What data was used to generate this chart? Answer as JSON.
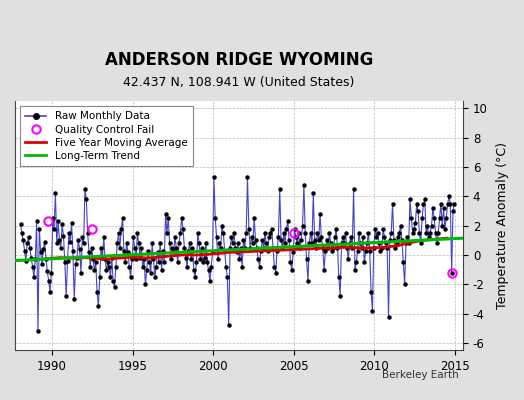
{
  "title": "ANDERSON RIDGE WYOMING",
  "subtitle": "42.437 N, 108.941 W (United States)",
  "ylabel": "Temperature Anomaly (°C)",
  "watermark": "Berkeley Earth",
  "xlim": [
    1987.7,
    2015.5
  ],
  "ylim": [
    -6.5,
    10.5
  ],
  "yticks": [
    -6,
    -4,
    -2,
    0,
    2,
    4,
    6,
    8,
    10
  ],
  "xticks": [
    1990,
    1995,
    2000,
    2005,
    2010,
    2015
  ],
  "bg_color": "#e0e0e0",
  "plot_bg_color": "#ffffff",
  "raw_line_color": "#4444cc",
  "raw_dot_color": "#000000",
  "qc_fail_color": "#ff00ff",
  "moving_avg_color": "#dd0000",
  "trend_color": "#00bb00",
  "raw_data": [
    [
      1988.042,
      2.1
    ],
    [
      1988.125,
      1.5
    ],
    [
      1988.208,
      1.0
    ],
    [
      1988.292,
      0.3
    ],
    [
      1988.375,
      -0.4
    ],
    [
      1988.458,
      0.8
    ],
    [
      1988.542,
      1.2
    ],
    [
      1988.625,
      0.5
    ],
    [
      1988.708,
      -0.2
    ],
    [
      1988.792,
      -0.8
    ],
    [
      1988.875,
      -1.5
    ],
    [
      1988.958,
      -0.3
    ],
    [
      1989.042,
      2.3
    ],
    [
      1989.125,
      -5.2
    ],
    [
      1989.208,
      1.8
    ],
    [
      1989.292,
      0.2
    ],
    [
      1989.375,
      -0.6
    ],
    [
      1989.458,
      0.4
    ],
    [
      1989.542,
      0.9
    ],
    [
      1989.625,
      -0.3
    ],
    [
      1989.708,
      -1.1
    ],
    [
      1989.792,
      -1.8
    ],
    [
      1989.875,
      -2.5
    ],
    [
      1989.958,
      -1.2
    ],
    [
      1990.042,
      2.5
    ],
    [
      1990.125,
      1.8
    ],
    [
      1990.208,
      4.2
    ],
    [
      1990.292,
      0.8
    ],
    [
      1990.375,
      2.3
    ],
    [
      1990.458,
      1.0
    ],
    [
      1990.542,
      0.5
    ],
    [
      1990.625,
      2.1
    ],
    [
      1990.708,
      1.3
    ],
    [
      1990.792,
      -0.5
    ],
    [
      1990.875,
      -2.8
    ],
    [
      1990.958,
      -0.4
    ],
    [
      1991.042,
      1.5
    ],
    [
      1991.125,
      0.9
    ],
    [
      1991.208,
      2.2
    ],
    [
      1991.292,
      0.3
    ],
    [
      1991.375,
      -3.0
    ],
    [
      1991.458,
      -0.6
    ],
    [
      1991.542,
      -0.2
    ],
    [
      1991.625,
      1.0
    ],
    [
      1991.708,
      0.4
    ],
    [
      1991.792,
      -1.2
    ],
    [
      1991.875,
      1.2
    ],
    [
      1991.958,
      0.8
    ],
    [
      1992.042,
      4.5
    ],
    [
      1992.125,
      3.8
    ],
    [
      1992.208,
      1.5
    ],
    [
      1992.292,
      0.2
    ],
    [
      1992.375,
      -0.8
    ],
    [
      1992.458,
      0.5
    ],
    [
      1992.542,
      -0.3
    ],
    [
      1992.625,
      -1.0
    ],
    [
      1992.708,
      -0.5
    ],
    [
      1992.792,
      -2.5
    ],
    [
      1992.875,
      -3.5
    ],
    [
      1992.958,
      -1.5
    ],
    [
      1993.042,
      0.5
    ],
    [
      1993.125,
      -0.2
    ],
    [
      1993.208,
      1.2
    ],
    [
      1993.292,
      -0.3
    ],
    [
      1993.375,
      -1.0
    ],
    [
      1993.458,
      -0.5
    ],
    [
      1993.542,
      -0.8
    ],
    [
      1993.625,
      -1.5
    ],
    [
      1993.708,
      -0.2
    ],
    [
      1993.792,
      -1.8
    ],
    [
      1993.875,
      -2.2
    ],
    [
      1993.958,
      -0.8
    ],
    [
      1994.042,
      0.8
    ],
    [
      1994.125,
      1.5
    ],
    [
      1994.208,
      0.5
    ],
    [
      1994.292,
      1.8
    ],
    [
      1994.375,
      2.5
    ],
    [
      1994.458,
      0.3
    ],
    [
      1994.542,
      -0.5
    ],
    [
      1994.625,
      0.8
    ],
    [
      1994.708,
      0.2
    ],
    [
      1994.792,
      -0.8
    ],
    [
      1994.875,
      -1.5
    ],
    [
      1994.958,
      -0.3
    ],
    [
      1995.042,
      1.2
    ],
    [
      1995.125,
      0.5
    ],
    [
      1995.208,
      -0.3
    ],
    [
      1995.292,
      1.5
    ],
    [
      1995.375,
      0.8
    ],
    [
      1995.458,
      -0.2
    ],
    [
      1995.542,
      0.5
    ],
    [
      1995.625,
      -0.8
    ],
    [
      1995.708,
      -0.3
    ],
    [
      1995.792,
      -2.0
    ],
    [
      1995.875,
      -1.0
    ],
    [
      1995.958,
      0.3
    ],
    [
      1996.042,
      -0.5
    ],
    [
      1996.125,
      -1.2
    ],
    [
      1996.208,
      0.8
    ],
    [
      1996.292,
      -0.3
    ],
    [
      1996.375,
      -1.5
    ],
    [
      1996.458,
      -0.8
    ],
    [
      1996.542,
      0.2
    ],
    [
      1996.625,
      -0.5
    ],
    [
      1996.708,
      0.8
    ],
    [
      1996.792,
      -1.0
    ],
    [
      1996.875,
      0.3
    ],
    [
      1996.958,
      -0.5
    ],
    [
      1997.042,
      2.8
    ],
    [
      1997.125,
      1.5
    ],
    [
      1997.208,
      2.5
    ],
    [
      1997.292,
      0.8
    ],
    [
      1997.375,
      -0.3
    ],
    [
      1997.458,
      0.5
    ],
    [
      1997.542,
      0.2
    ],
    [
      1997.625,
      1.2
    ],
    [
      1997.708,
      0.5
    ],
    [
      1997.792,
      -0.5
    ],
    [
      1997.875,
      0.8
    ],
    [
      1997.958,
      1.5
    ],
    [
      1998.042,
      2.5
    ],
    [
      1998.125,
      1.8
    ],
    [
      1998.208,
      0.5
    ],
    [
      1998.292,
      -0.2
    ],
    [
      1998.375,
      -0.8
    ],
    [
      1998.458,
      0.3
    ],
    [
      1998.542,
      0.8
    ],
    [
      1998.625,
      -0.3
    ],
    [
      1998.708,
      0.5
    ],
    [
      1998.792,
      -1.0
    ],
    [
      1998.875,
      -1.5
    ],
    [
      1998.958,
      -0.5
    ],
    [
      1999.042,
      1.5
    ],
    [
      1999.125,
      0.8
    ],
    [
      1999.208,
      -0.3
    ],
    [
      1999.292,
      0.5
    ],
    [
      1999.375,
      -0.5
    ],
    [
      1999.458,
      -0.2
    ],
    [
      1999.542,
      0.8
    ],
    [
      1999.625,
      -0.5
    ],
    [
      1999.708,
      -1.0
    ],
    [
      1999.792,
      -1.8
    ],
    [
      1999.875,
      -0.8
    ],
    [
      1999.958,
      0.2
    ],
    [
      2000.042,
      5.3
    ],
    [
      2000.125,
      2.5
    ],
    [
      2000.208,
      1.2
    ],
    [
      2000.292,
      -0.3
    ],
    [
      2000.375,
      0.8
    ],
    [
      2000.458,
      0.5
    ],
    [
      2000.542,
      2.0
    ],
    [
      2000.625,
      1.5
    ],
    [
      2000.708,
      0.3
    ],
    [
      2000.792,
      -0.8
    ],
    [
      2000.875,
      -1.5
    ],
    [
      2000.958,
      -4.8
    ],
    [
      2001.042,
      0.5
    ],
    [
      2001.125,
      1.2
    ],
    [
      2001.208,
      0.8
    ],
    [
      2001.292,
      1.5
    ],
    [
      2001.375,
      0.5
    ],
    [
      2001.458,
      0.2
    ],
    [
      2001.542,
      0.8
    ],
    [
      2001.625,
      -0.3
    ],
    [
      2001.708,
      0.5
    ],
    [
      2001.792,
      -0.8
    ],
    [
      2001.875,
      1.0
    ],
    [
      2001.958,
      0.5
    ],
    [
      2002.042,
      1.5
    ],
    [
      2002.125,
      5.3
    ],
    [
      2002.208,
      1.8
    ],
    [
      2002.292,
      0.5
    ],
    [
      2002.375,
      1.2
    ],
    [
      2002.458,
      0.8
    ],
    [
      2002.542,
      2.5
    ],
    [
      2002.625,
      1.0
    ],
    [
      2002.708,
      0.5
    ],
    [
      2002.792,
      -0.3
    ],
    [
      2002.875,
      -0.8
    ],
    [
      2002.958,
      0.3
    ],
    [
      2003.042,
      1.0
    ],
    [
      2003.125,
      0.5
    ],
    [
      2003.208,
      1.5
    ],
    [
      2003.292,
      0.8
    ],
    [
      2003.375,
      0.3
    ],
    [
      2003.458,
      1.2
    ],
    [
      2003.542,
      1.5
    ],
    [
      2003.625,
      1.8
    ],
    [
      2003.708,
      0.5
    ],
    [
      2003.792,
      -0.8
    ],
    [
      2003.875,
      -1.2
    ],
    [
      2003.958,
      0.3
    ],
    [
      2004.042,
      1.2
    ],
    [
      2004.125,
      4.5
    ],
    [
      2004.208,
      1.0
    ],
    [
      2004.292,
      0.5
    ],
    [
      2004.375,
      1.5
    ],
    [
      2004.458,
      0.8
    ],
    [
      2004.542,
      1.8
    ],
    [
      2004.625,
      2.3
    ],
    [
      2004.708,
      1.0
    ],
    [
      2004.792,
      -0.5
    ],
    [
      2004.875,
      -1.0
    ],
    [
      2004.958,
      0.2
    ],
    [
      2005.042,
      1.8
    ],
    [
      2005.125,
      1.2
    ],
    [
      2005.208,
      0.8
    ],
    [
      2005.292,
      1.5
    ],
    [
      2005.375,
      0.5
    ],
    [
      2005.458,
      1.0
    ],
    [
      2005.542,
      2.0
    ],
    [
      2005.625,
      4.8
    ],
    [
      2005.708,
      1.5
    ],
    [
      2005.792,
      -0.3
    ],
    [
      2005.875,
      -1.8
    ],
    [
      2005.958,
      0.8
    ],
    [
      2006.042,
      1.5
    ],
    [
      2006.125,
      0.8
    ],
    [
      2006.208,
      4.2
    ],
    [
      2006.292,
      1.0
    ],
    [
      2006.375,
      0.5
    ],
    [
      2006.458,
      1.5
    ],
    [
      2006.542,
      1.0
    ],
    [
      2006.625,
      2.8
    ],
    [
      2006.708,
      1.2
    ],
    [
      2006.792,
      0.5
    ],
    [
      2006.875,
      -1.0
    ],
    [
      2006.958,
      0.3
    ],
    [
      2007.042,
      1.0
    ],
    [
      2007.125,
      0.5
    ],
    [
      2007.208,
      1.5
    ],
    [
      2007.292,
      0.8
    ],
    [
      2007.375,
      0.3
    ],
    [
      2007.458,
      0.5
    ],
    [
      2007.542,
      1.2
    ],
    [
      2007.625,
      1.8
    ],
    [
      2007.708,
      0.5
    ],
    [
      2007.792,
      -1.5
    ],
    [
      2007.875,
      -2.8
    ],
    [
      2007.958,
      0.8
    ],
    [
      2008.042,
      1.2
    ],
    [
      2008.125,
      0.8
    ],
    [
      2008.208,
      1.5
    ],
    [
      2008.292,
      0.5
    ],
    [
      2008.375,
      -0.3
    ],
    [
      2008.458,
      0.8
    ],
    [
      2008.542,
      1.2
    ],
    [
      2008.625,
      0.5
    ],
    [
      2008.708,
      4.5
    ],
    [
      2008.792,
      -1.0
    ],
    [
      2008.875,
      -0.5
    ],
    [
      2008.958,
      0.3
    ],
    [
      2009.042,
      1.5
    ],
    [
      2009.125,
      0.8
    ],
    [
      2009.208,
      0.5
    ],
    [
      2009.292,
      1.2
    ],
    [
      2009.375,
      -0.5
    ],
    [
      2009.458,
      0.3
    ],
    [
      2009.542,
      0.8
    ],
    [
      2009.625,
      1.5
    ],
    [
      2009.708,
      0.3
    ],
    [
      2009.792,
      -2.5
    ],
    [
      2009.875,
      -3.8
    ],
    [
      2009.958,
      0.5
    ],
    [
      2010.042,
      1.8
    ],
    [
      2010.125,
      1.2
    ],
    [
      2010.208,
      1.5
    ],
    [
      2010.292,
      0.8
    ],
    [
      2010.375,
      0.3
    ],
    [
      2010.458,
      0.5
    ],
    [
      2010.542,
      1.8
    ],
    [
      2010.625,
      1.2
    ],
    [
      2010.708,
      0.8
    ],
    [
      2010.792,
      0.5
    ],
    [
      2010.875,
      -4.2
    ],
    [
      2010.958,
      1.0
    ],
    [
      2011.042,
      1.5
    ],
    [
      2011.125,
      3.5
    ],
    [
      2011.208,
      1.0
    ],
    [
      2011.292,
      0.5
    ],
    [
      2011.375,
      0.8
    ],
    [
      2011.458,
      1.2
    ],
    [
      2011.542,
      1.5
    ],
    [
      2011.625,
      2.0
    ],
    [
      2011.708,
      1.0
    ],
    [
      2011.792,
      -0.5
    ],
    [
      2011.875,
      -2.0
    ],
    [
      2011.958,
      0.8
    ],
    [
      2012.042,
      1.2
    ],
    [
      2012.125,
      0.8
    ],
    [
      2012.208,
      3.8
    ],
    [
      2012.292,
      2.5
    ],
    [
      2012.375,
      1.5
    ],
    [
      2012.458,
      1.8
    ],
    [
      2012.542,
      2.2
    ],
    [
      2012.625,
      3.5
    ],
    [
      2012.708,
      3.0
    ],
    [
      2012.792,
      1.5
    ],
    [
      2012.875,
      0.8
    ],
    [
      2012.958,
      2.5
    ],
    [
      2013.042,
      3.5
    ],
    [
      2013.125,
      3.8
    ],
    [
      2013.208,
      1.5
    ],
    [
      2013.292,
      2.0
    ],
    [
      2013.375,
      1.2
    ],
    [
      2013.458,
      1.5
    ],
    [
      2013.542,
      2.0
    ],
    [
      2013.625,
      3.2
    ],
    [
      2013.708,
      2.5
    ],
    [
      2013.792,
      1.5
    ],
    [
      2013.875,
      0.8
    ],
    [
      2013.958,
      1.5
    ],
    [
      2014.042,
      2.5
    ],
    [
      2014.125,
      3.5
    ],
    [
      2014.208,
      2.0
    ],
    [
      2014.292,
      3.2
    ],
    [
      2014.375,
      1.8
    ],
    [
      2014.458,
      2.5
    ],
    [
      2014.542,
      3.5
    ],
    [
      2014.625,
      4.0
    ],
    [
      2014.708,
      3.5
    ],
    [
      2014.792,
      -1.2
    ],
    [
      2014.875,
      3.0
    ],
    [
      2014.958,
      3.5
    ]
  ],
  "qc_fail_points": [
    [
      1989.75,
      2.3
    ],
    [
      1992.5,
      1.8
    ],
    [
      2005.0,
      1.5
    ],
    [
      2014.792,
      -1.2
    ]
  ],
  "moving_avg": [
    [
      1989.5,
      -0.28
    ],
    [
      1990.0,
      -0.22
    ],
    [
      1990.5,
      -0.18
    ],
    [
      1991.0,
      -0.2
    ],
    [
      1991.5,
      -0.22
    ],
    [
      1992.0,
      -0.18
    ],
    [
      1992.5,
      -0.2
    ],
    [
      1993.0,
      -0.25
    ],
    [
      1993.5,
      -0.28
    ],
    [
      1994.0,
      -0.22
    ],
    [
      1994.5,
      -0.18
    ],
    [
      1995.0,
      -0.15
    ],
    [
      1995.5,
      -0.18
    ],
    [
      1996.0,
      -0.2
    ],
    [
      1996.5,
      -0.15
    ],
    [
      1997.0,
      -0.1
    ],
    [
      1997.5,
      -0.05
    ],
    [
      1998.0,
      0.0
    ],
    [
      1998.5,
      0.02
    ],
    [
      1999.0,
      0.0
    ],
    [
      1999.5,
      0.03
    ],
    [
      2000.0,
      0.08
    ],
    [
      2000.5,
      0.12
    ],
    [
      2001.0,
      0.18
    ],
    [
      2001.5,
      0.2
    ],
    [
      2002.0,
      0.22
    ],
    [
      2002.5,
      0.25
    ],
    [
      2003.0,
      0.28
    ],
    [
      2003.5,
      0.3
    ],
    [
      2004.0,
      0.32
    ],
    [
      2004.5,
      0.35
    ],
    [
      2005.0,
      0.38
    ],
    [
      2005.5,
      0.4
    ],
    [
      2006.0,
      0.42
    ],
    [
      2006.5,
      0.45
    ],
    [
      2007.0,
      0.48
    ],
    [
      2007.5,
      0.5
    ],
    [
      2008.0,
      0.52
    ],
    [
      2008.5,
      0.52
    ],
    [
      2009.0,
      0.5
    ],
    [
      2009.5,
      0.48
    ],
    [
      2010.0,
      0.5
    ],
    [
      2010.5,
      0.52
    ],
    [
      2011.0,
      0.58
    ],
    [
      2011.5,
      0.65
    ],
    [
      2012.0,
      0.8
    ],
    [
      2012.5,
      0.9
    ],
    [
      2013.0,
      1.0
    ],
    [
      2013.5,
      1.05
    ],
    [
      2014.0,
      1.1
    ],
    [
      2014.5,
      1.15
    ]
  ],
  "trend_line": [
    [
      1987.7,
      -0.38
    ],
    [
      2015.5,
      1.15
    ]
  ],
  "title_fontsize": 12,
  "subtitle_fontsize": 9,
  "tick_fontsize": 8.5,
  "legend_fontsize": 7.5,
  "watermark_fontsize": 7.5,
  "ylabel_fontsize": 9
}
